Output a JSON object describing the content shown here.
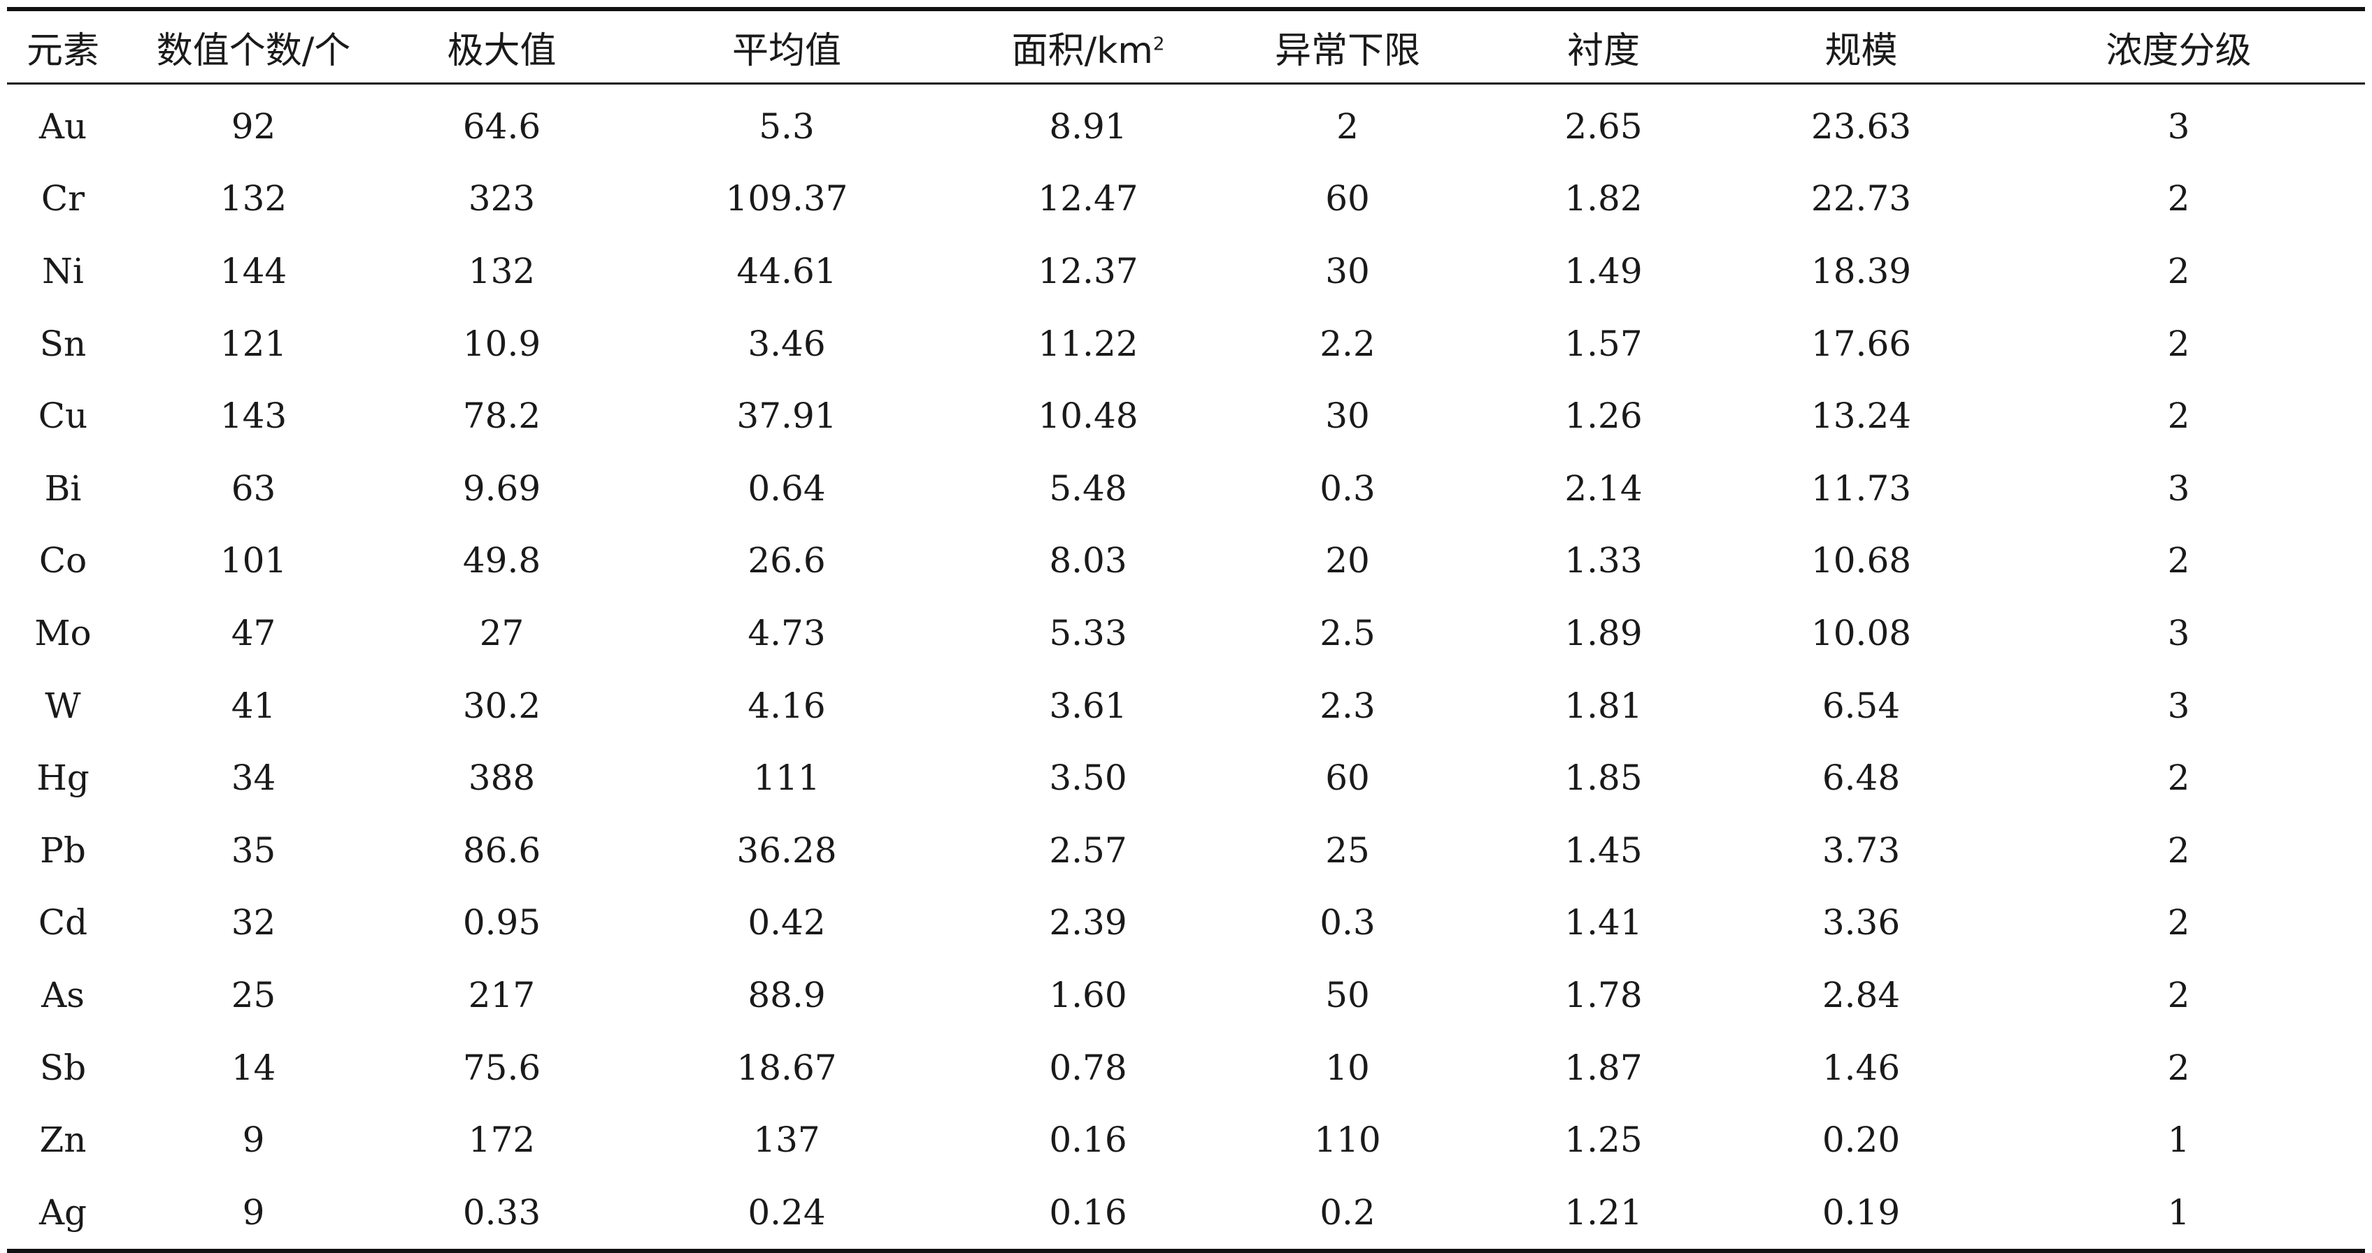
{
  "table": {
    "headers": [
      "元素",
      "数值个数/个",
      "极大值",
      "平均值",
      "面积/km",
      "异常下限",
      "衬度",
      "规模",
      "浓度分级"
    ],
    "area_superscript": "2",
    "rows": [
      [
        "Au",
        "92",
        "64.6",
        "5.3",
        "8.91",
        "2",
        "2.65",
        "23.63",
        "3"
      ],
      [
        "Cr",
        "132",
        "323",
        "109.37",
        "12.47",
        "60",
        "1.82",
        "22.73",
        "2"
      ],
      [
        "Ni",
        "144",
        "132",
        "44.61",
        "12.37",
        "30",
        "1.49",
        "18.39",
        "2"
      ],
      [
        "Sn",
        "121",
        "10.9",
        "3.46",
        "11.22",
        "2.2",
        "1.57",
        "17.66",
        "2"
      ],
      [
        "Cu",
        "143",
        "78.2",
        "37.91",
        "10.48",
        "30",
        "1.26",
        "13.24",
        "2"
      ],
      [
        "Bi",
        "63",
        "9.69",
        "0.64",
        "5.48",
        "0.3",
        "2.14",
        "11.73",
        "3"
      ],
      [
        "Co",
        "101",
        "49.8",
        "26.6",
        "8.03",
        "20",
        "1.33",
        "10.68",
        "2"
      ],
      [
        "Mo",
        "47",
        "27",
        "4.73",
        "5.33",
        "2.5",
        "1.89",
        "10.08",
        "3"
      ],
      [
        "W",
        "41",
        "30.2",
        "4.16",
        "3.61",
        "2.3",
        "1.81",
        "6.54",
        "3"
      ],
      [
        "Hg",
        "34",
        "388",
        "111",
        "3.50",
        "60",
        "1.85",
        "6.48",
        "2"
      ],
      [
        "Pb",
        "35",
        "86.6",
        "36.28",
        "2.57",
        "25",
        "1.45",
        "3.73",
        "2"
      ],
      [
        "Cd",
        "32",
        "0.95",
        "0.42",
        "2.39",
        "0.3",
        "1.41",
        "3.36",
        "2"
      ],
      [
        "As",
        "25",
        "217",
        "88.9",
        "1.60",
        "50",
        "1.78",
        "2.84",
        "2"
      ],
      [
        "Sb",
        "14",
        "75.6",
        "18.67",
        "0.78",
        "10",
        "1.87",
        "1.46",
        "2"
      ],
      [
        "Zn",
        "9",
        "172",
        "137",
        "0.16",
        "110",
        "1.25",
        "0.20",
        "1"
      ],
      [
        "Ag",
        "9",
        "0.33",
        "0.24",
        "0.16",
        "0.2",
        "1.21",
        "0.19",
        "1"
      ]
    ]
  }
}
